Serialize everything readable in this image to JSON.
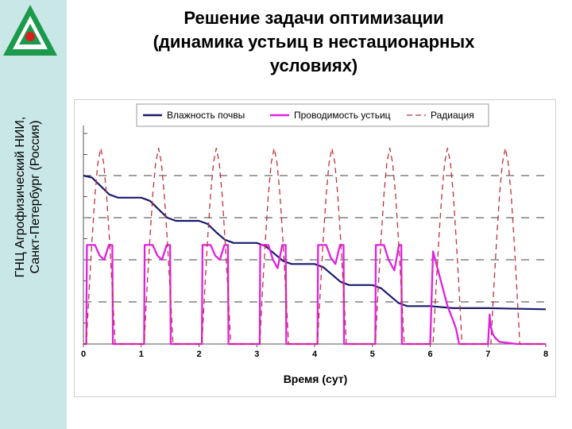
{
  "slide": {
    "title_lines": [
      "Решение задачи оптимизации",
      "(динамика устьиц в нестационарных",
      "условиях)"
    ],
    "org_lines": [
      "ГНЦ Агрофизический НИИ,",
      "Санкт-Петербург (Россия)"
    ],
    "colors": {
      "sidebar": "#c9e7e7",
      "logo_green": "#1a9a4a",
      "logo_red": "#d62020"
    }
  },
  "chart_data": {
    "type": "line",
    "title": "",
    "xlabel": "Время (сут)",
    "ylabel": "",
    "xlim": [
      0,
      8
    ],
    "x_ticks": [
      "0",
      "1",
      "2",
      "3",
      "4",
      "5",
      "6",
      "7",
      "8"
    ],
    "ylim": [
      0,
      10
    ],
    "grid": {
      "y_dashed": true,
      "x": false
    },
    "legend_position": "top",
    "series": [
      {
        "name": "Влажность почвы",
        "color": "#1a1a6e",
        "style": "solid",
        "x": [
          0,
          0.15,
          0.3,
          0.45,
          0.6,
          1.0,
          1.15,
          1.3,
          1.45,
          1.6,
          2.0,
          2.15,
          2.3,
          2.45,
          2.6,
          3.0,
          3.15,
          3.3,
          3.45,
          3.6,
          4.0,
          4.15,
          4.3,
          4.45,
          4.6,
          5.0,
          5.15,
          5.3,
          5.45,
          5.6,
          6.0,
          6.2,
          6.4,
          7.0,
          8.0
        ],
        "values": [
          8.0,
          7.9,
          7.5,
          7.1,
          6.95,
          6.95,
          6.8,
          6.4,
          6.0,
          5.85,
          5.85,
          5.7,
          5.3,
          4.95,
          4.8,
          4.8,
          4.65,
          4.3,
          3.95,
          3.8,
          3.8,
          3.65,
          3.3,
          2.95,
          2.8,
          2.8,
          2.65,
          2.3,
          1.95,
          1.8,
          1.8,
          1.75,
          1.7,
          1.7,
          1.65
        ]
      },
      {
        "name": "Проводимость устьиц",
        "color": "#e020e0",
        "style": "solid",
        "x": [
          0,
          0.05,
          0.06,
          0.2,
          0.28,
          0.36,
          0.44,
          0.5,
          0.51,
          0.6,
          1.0,
          1.05,
          1.06,
          1.2,
          1.28,
          1.36,
          1.44,
          1.5,
          1.51,
          1.6,
          2.0,
          2.05,
          2.06,
          2.2,
          2.28,
          2.36,
          2.44,
          2.5,
          2.51,
          2.6,
          3.0,
          3.05,
          3.06,
          3.2,
          3.28,
          3.36,
          3.44,
          3.5,
          3.51,
          3.6,
          4.0,
          4.05,
          4.06,
          4.2,
          4.28,
          4.36,
          4.44,
          4.5,
          4.51,
          4.6,
          5.0,
          5.05,
          5.06,
          5.2,
          5.28,
          5.38,
          5.46,
          5.5,
          5.51,
          5.55,
          5.9,
          6.0,
          6.05,
          6.3,
          6.4,
          6.45,
          6.5,
          7.0,
          7.03,
          7.04,
          7.08,
          7.12,
          7.2,
          7.35,
          7.5,
          8.0
        ],
        "values": [
          0,
          0,
          4.7,
          4.7,
          4.2,
          4.0,
          4.7,
          4.7,
          0,
          0,
          0,
          0,
          4.7,
          4.7,
          4.2,
          4.0,
          4.7,
          4.7,
          0,
          0,
          0,
          0,
          4.7,
          4.7,
          4.2,
          4.0,
          4.7,
          4.7,
          0,
          0,
          0,
          0,
          4.7,
          4.7,
          4.0,
          3.6,
          4.7,
          4.7,
          0,
          0,
          0,
          0,
          4.7,
          4.7,
          4.1,
          3.8,
          4.7,
          4.7,
          0,
          0,
          0,
          0,
          4.7,
          4.7,
          4.0,
          3.5,
          4.7,
          4.7,
          0,
          0,
          0,
          0,
          4.4,
          1.8,
          1.1,
          0.7,
          0,
          0,
          1.4,
          0.9,
          0.5,
          0.3,
          0.1,
          0.05,
          0,
          0
        ]
      },
      {
        "name": "Радиация",
        "color": "#c0303b",
        "style": "dashed",
        "x": [
          0,
          0.05,
          0.1,
          0.15,
          0.2,
          0.25,
          0.3,
          0.35,
          0.4,
          0.45,
          0.5,
          0.55,
          1.0,
          1.05,
          1.1,
          1.15,
          1.2,
          1.25,
          1.3,
          1.35,
          1.4,
          1.45,
          1.5,
          1.55,
          2.0,
          2.05,
          2.1,
          2.15,
          2.2,
          2.25,
          2.3,
          2.35,
          2.4,
          2.45,
          2.5,
          2.55,
          3.0,
          3.05,
          3.1,
          3.15,
          3.2,
          3.25,
          3.3,
          3.35,
          3.4,
          3.45,
          3.5,
          3.55,
          4.0,
          4.05,
          4.1,
          4.15,
          4.2,
          4.25,
          4.3,
          4.35,
          4.4,
          4.45,
          4.5,
          4.55,
          5.0,
          5.05,
          5.1,
          5.15,
          5.2,
          5.25,
          5.3,
          5.35,
          5.4,
          5.45,
          5.5,
          5.55,
          6.0,
          6.05,
          6.1,
          6.15,
          6.2,
          6.25,
          6.3,
          6.35,
          6.4,
          6.45,
          6.5,
          6.55,
          7.0,
          7.05,
          7.1,
          7.15,
          7.2,
          7.25,
          7.3,
          7.35,
          7.4,
          7.45,
          7.5,
          7.55,
          8.0
        ],
        "values": [
          0,
          0,
          2.6,
          5.0,
          7.1,
          8.6,
          9.3,
          8.6,
          7.1,
          5.0,
          2.6,
          0,
          0,
          0,
          2.6,
          5.0,
          7.1,
          8.6,
          9.3,
          8.6,
          7.1,
          5.0,
          2.6,
          0,
          0,
          0,
          2.6,
          5.0,
          7.1,
          8.6,
          9.3,
          8.6,
          7.1,
          5.0,
          2.6,
          0,
          0,
          0,
          2.6,
          5.0,
          7.1,
          8.6,
          9.3,
          8.6,
          7.1,
          5.0,
          2.6,
          0,
          0,
          0,
          2.6,
          5.0,
          7.1,
          8.6,
          9.3,
          8.6,
          7.1,
          5.0,
          2.6,
          0,
          0,
          0,
          2.6,
          5.0,
          7.1,
          8.6,
          9.3,
          8.6,
          7.1,
          5.0,
          2.6,
          0,
          0,
          0,
          2.6,
          5.0,
          7.1,
          8.6,
          9.3,
          8.6,
          7.1,
          5.0,
          2.6,
          0,
          0,
          0,
          2.6,
          5.0,
          7.1,
          8.6,
          9.3,
          8.6,
          7.1,
          5.0,
          2.6,
          0,
          0
        ]
      }
    ]
  }
}
